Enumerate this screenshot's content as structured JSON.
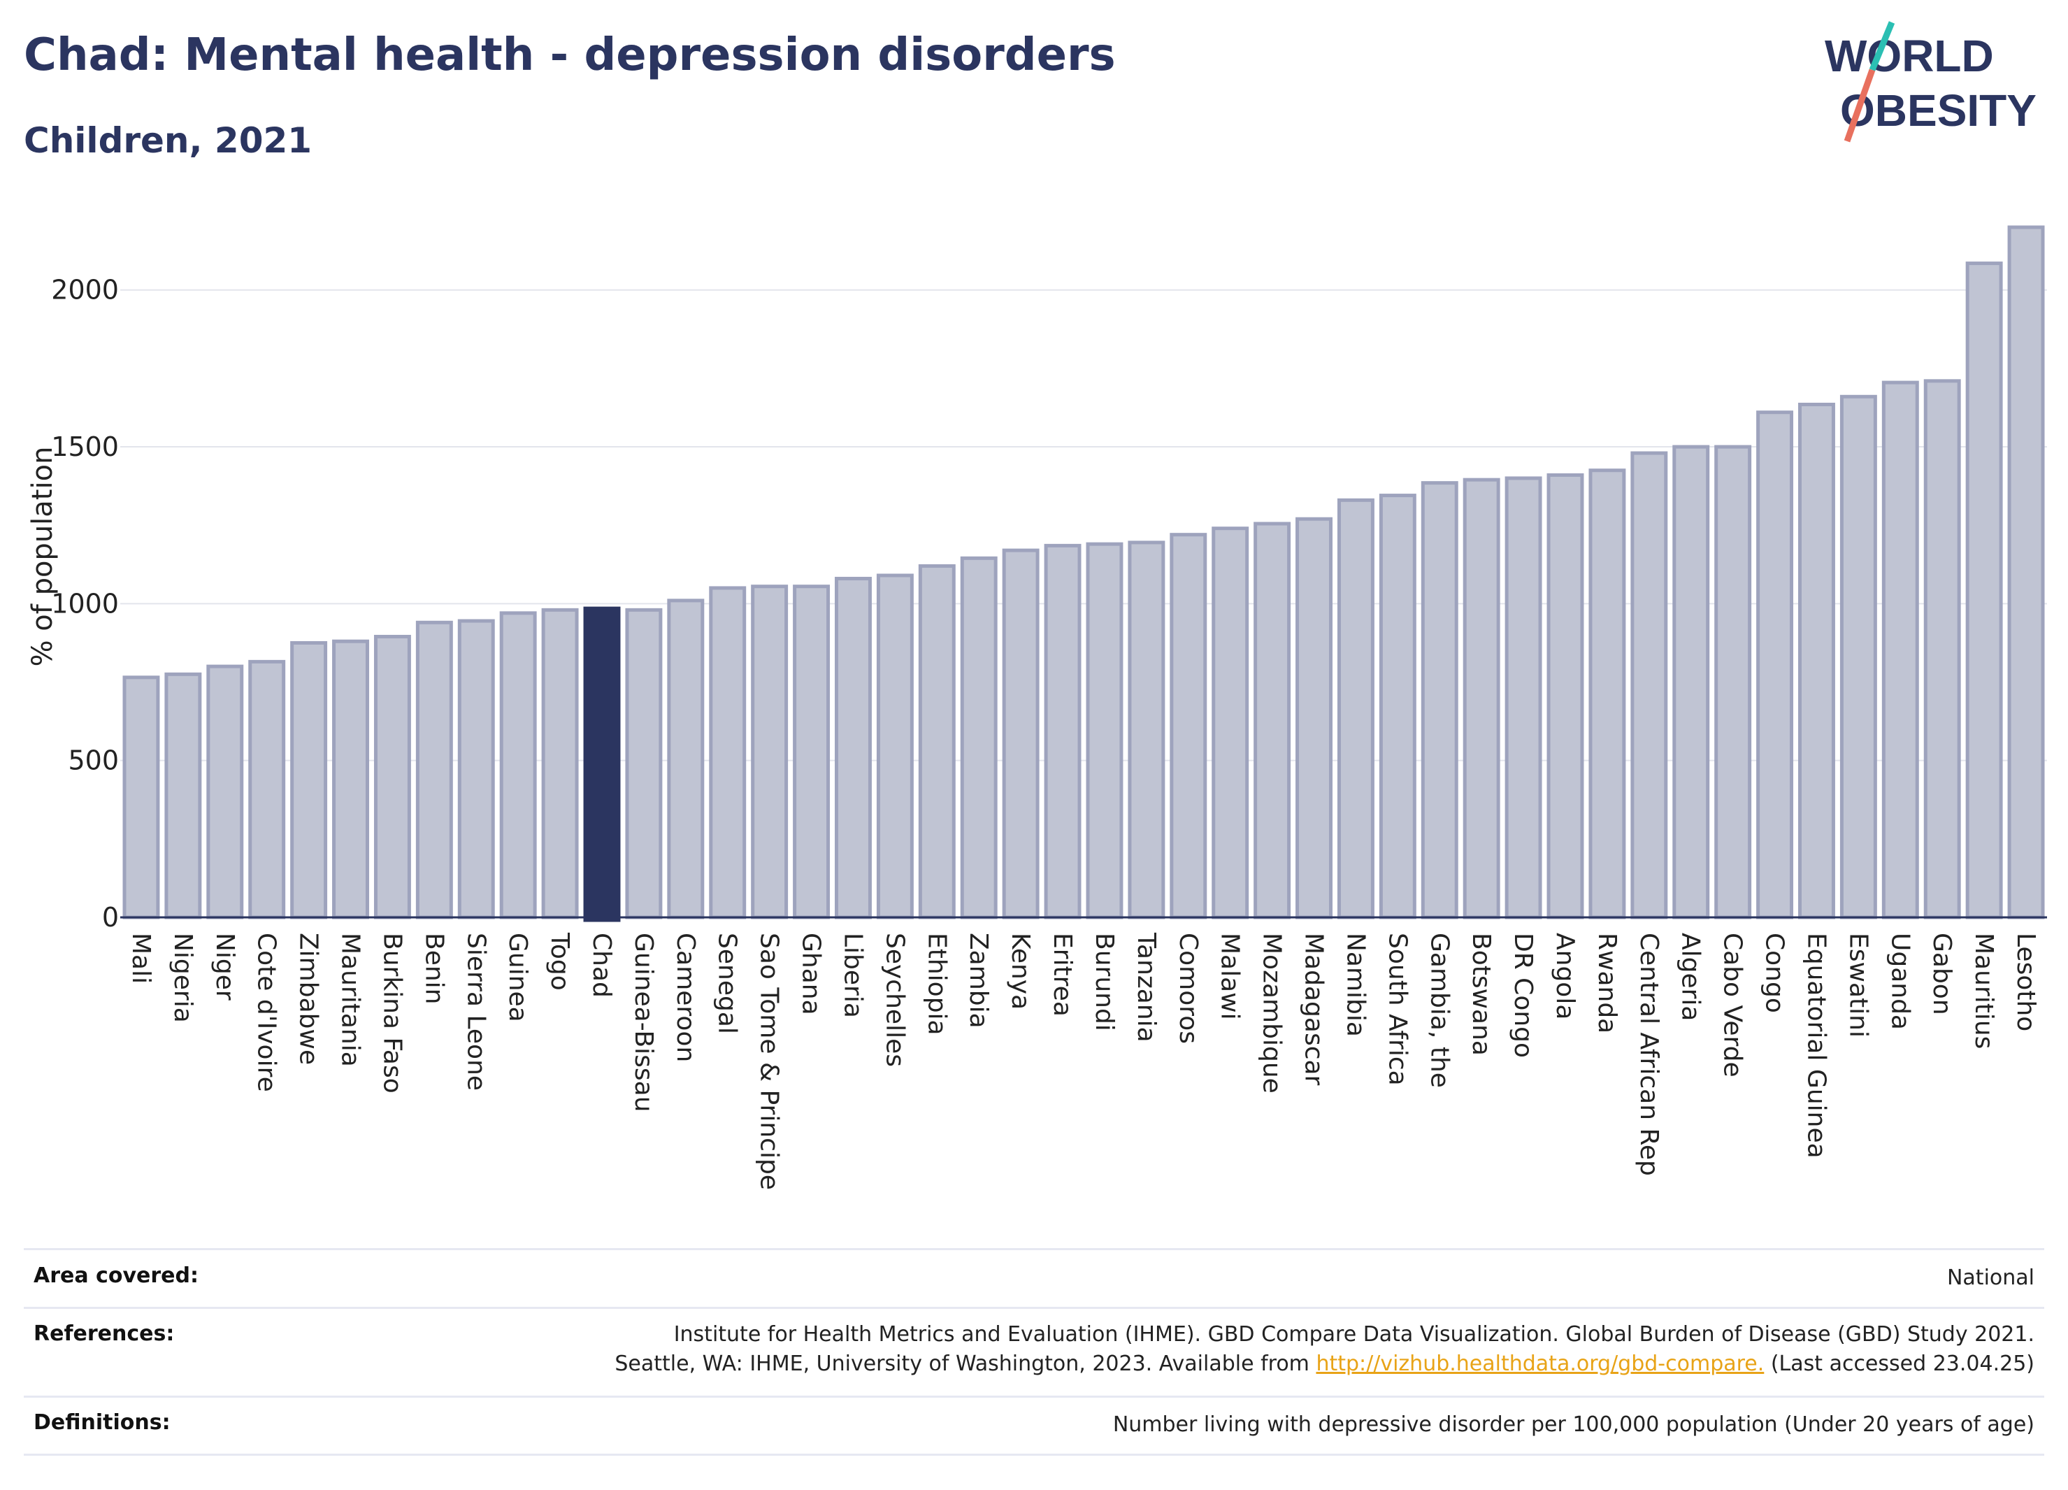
{
  "header": {
    "title": "Chad: Mental health - depression disorders",
    "subtitle": "Children, 2021",
    "logo_line1": "WORLD",
    "logo_line2": "OBESITY"
  },
  "colors": {
    "highlight": "#2b3560",
    "bar_fill": "#c0c4d3",
    "bar_stroke": "#9ea3bd",
    "title": "#2b3560",
    "logo_teal": "#2bbfb3",
    "logo_coral": "#e8705e",
    "link": "#e8a317"
  },
  "chart_data": {
    "type": "bar",
    "ylabel": "% of population",
    "ylim": [
      0,
      2200
    ],
    "yticks": [
      0,
      500,
      1000,
      1500,
      2000
    ],
    "grid": true,
    "highlight": "Chad",
    "categories": [
      "Mali",
      "Nigeria",
      "Niger",
      "Cote d'Ivoire",
      "Zimbabwe",
      "Mauritania",
      "Burkina Faso",
      "Benin",
      "Sierra Leone",
      "Guinea",
      "Togo",
      "Chad",
      "Guinea-Bissau",
      "Cameroon",
      "Senegal",
      "Sao Tome & Principe",
      "Ghana",
      "Liberia",
      "Seychelles",
      "Ethiopia",
      "Zambia",
      "Kenya",
      "Eritrea",
      "Burundi",
      "Tanzania",
      "Comoros",
      "Malawi",
      "Mozambique",
      "Madagascar",
      "Namibia",
      "South Africa",
      "Gambia, the",
      "Botswana",
      "DR Congo",
      "Angola",
      "Rwanda",
      "Central African Rep",
      "Algeria",
      "Cabo Verde",
      "Congo",
      "Equatorial Guinea",
      "Eswatini",
      "Uganda",
      "Gabon",
      "Mauritius",
      "Lesotho"
    ],
    "values": [
      765,
      775,
      800,
      815,
      875,
      880,
      895,
      940,
      945,
      970,
      980,
      985,
      980,
      1010,
      1050,
      1055,
      1055,
      1080,
      1090,
      1120,
      1145,
      1170,
      1185,
      1190,
      1195,
      1220,
      1240,
      1255,
      1270,
      1330,
      1345,
      1385,
      1395,
      1400,
      1410,
      1425,
      1480,
      1500,
      1500,
      1610,
      1635,
      1660,
      1705,
      1710,
      2085,
      2200
    ]
  },
  "info": {
    "area_label": "Area covered:",
    "area_value": "National",
    "references_label": "References:",
    "references_line1": "Institute for Health Metrics and Evaluation (IHME). GBD Compare Data Visualization. Global Burden of Disease (GBD) Study 2021.",
    "references_line2_pre": "Seattle, WA: IHME, University of Washington, 2023. Available from ",
    "references_link": "http://vizhub.healthdata.org/gbd-compare.",
    "references_line2_post": " (Last accessed 23.04.25)",
    "definitions_label": "Definitions:",
    "definitions_value": "Number living with depressive disorder per 100,000 population (Under 20 years of age)"
  }
}
